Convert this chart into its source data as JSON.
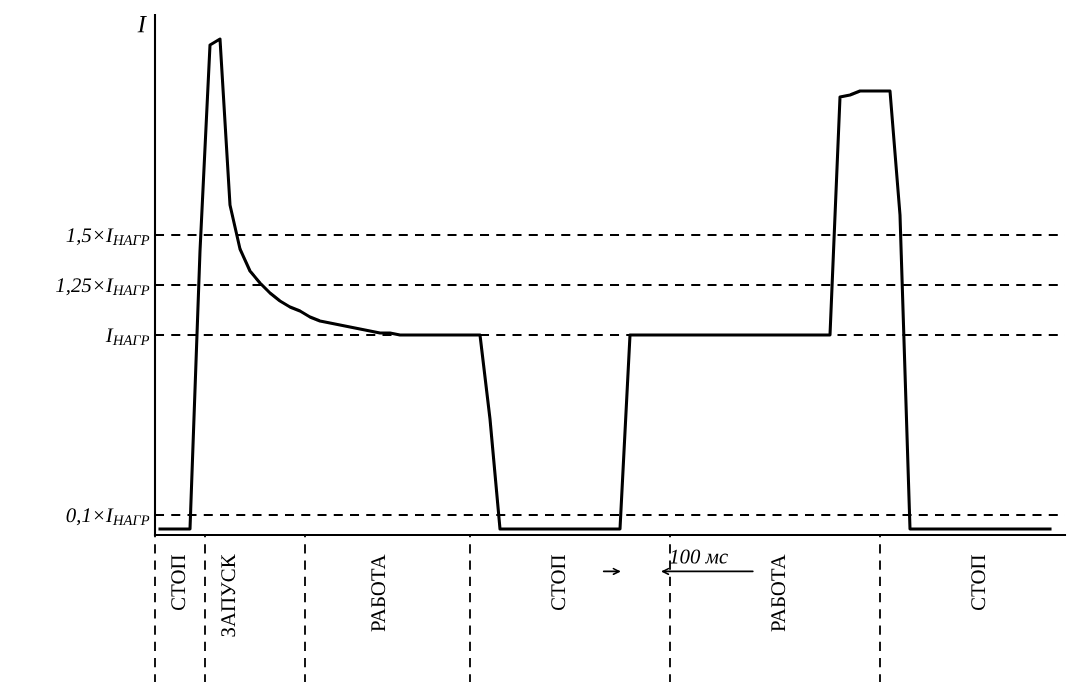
{
  "chart_data": {
    "type": "line",
    "ylabel": "I",
    "categories": [
      null,
      null,
      "СТОП",
      null,
      null,
      null,
      null,
      "ЗАПУСК",
      null,
      null,
      null,
      null,
      null,
      null,
      null,
      null,
      null,
      null,
      null,
      null,
      null,
      null,
      "РАБОТА",
      null,
      null,
      null,
      null,
      null,
      null,
      null,
      null,
      null,
      null,
      null,
      null,
      null,
      null,
      null,
      null,
      null,
      "СТОП",
      null,
      null,
      null,
      null,
      null,
      null,
      null,
      null,
      null,
      null,
      null,
      null,
      null,
      null,
      null,
      null,
      null,
      null,
      null,
      null,
      null,
      "РАБОТА",
      null,
      null,
      null,
      null,
      null,
      null,
      null,
      null,
      null,
      null,
      null,
      null,
      null,
      null,
      null,
      null,
      null,
      null,
      null,
      "СТОП",
      null,
      null,
      null,
      null,
      null,
      null,
      null
    ],
    "series": [
      {
        "color": "#000000",
        "values": [
          0.03,
          0.03,
          0.03,
          0.03,
          1.42,
          2.45,
          2.48,
          1.65,
          1.43,
          1.32,
          1.26,
          1.21,
          1.17,
          1.14,
          1.12,
          1.09,
          1.07,
          1.06,
          1.05,
          1.04,
          1.03,
          1.02,
          1.01,
          1.01,
          1.0,
          1.0,
          1.0,
          1.0,
          1.0,
          1.0,
          1.0,
          1.0,
          1.0,
          0.58,
          0.03,
          0.03,
          0.03,
          0.03,
          0.03,
          0.03,
          0.03,
          0.03,
          0.03,
          0.03,
          0.03,
          0.03,
          0.03,
          1.0,
          1.0,
          1.0,
          1.0,
          1.0,
          1.0,
          1.0,
          1.0,
          1.0,
          1.0,
          1.0,
          1.0,
          1.0,
          1.0,
          1.0,
          1.0,
          1.0,
          1.0,
          1.0,
          1.0,
          1.0,
          2.19,
          2.2,
          2.22,
          2.22,
          2.22,
          2.22,
          1.6,
          0.03,
          0.03,
          0.03,
          0.03,
          0.03,
          0.03,
          0.03,
          0.03,
          0.03,
          0.03,
          0.03,
          0.03,
          0.03,
          0.03,
          0.03
        ]
      }
    ],
    "ylim": [
      0,
      2.6
    ],
    "yticks": [
      {
        "value": 0.1,
        "label": "0,1×I$_{НАГР}$"
      },
      {
        "value": 1,
        "label": "I$_{НАГР}$"
      },
      {
        "value": 1.25,
        "label": "1,25×I$_{НАГР}$"
      },
      {
        "value": 1.5,
        "label": "1,5×I$_{НАГР}$"
      }
    ],
    "line_style": "solid",
    "ref_lines": [
      {
        "axis": "y",
        "value": 0.1,
        "line_style": "dashed",
        "color": "#000000"
      },
      {
        "axis": "y",
        "value": 1,
        "line_style": "dashed",
        "color": "#000000"
      },
      {
        "axis": "y",
        "value": 1.25,
        "line_style": "dashed",
        "color": "#000000"
      },
      {
        "axis": "y",
        "value": 1.5,
        "line_style": "dashed",
        "color": "#000000"
      }
    ],
    "annotations": [
      "100 мс"
    ]
  }
}
